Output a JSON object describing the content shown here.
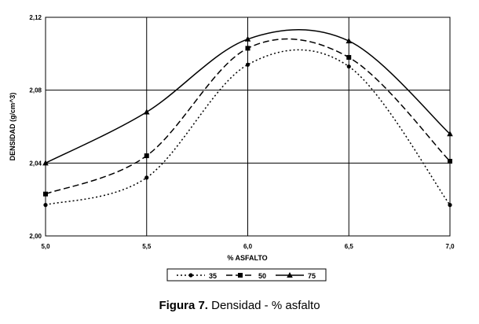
{
  "caption": {
    "prefix": "Figura 7.",
    "text": " Densidad - % asfalto"
  },
  "chart_data": {
    "type": "line",
    "title": "",
    "xlabel": "% ASFALTO",
    "ylabel": "DENSIDAD (g/cm^3)",
    "xlim": [
      5.0,
      7.0
    ],
    "ylim": [
      2.0,
      2.12
    ],
    "x_ticks": [
      "5,0",
      "5,5",
      "6,0",
      "6,5",
      "7,0"
    ],
    "y_ticks": [
      "2,00",
      "2,04",
      "2,08",
      "2,12"
    ],
    "grid": true,
    "legend_position": "bottom",
    "series": [
      {
        "name": "35",
        "marker": "circle",
        "style": "dotted",
        "x": [
          5.0,
          5.5,
          6.0,
          6.5,
          7.0
        ],
        "values": [
          2.017,
          2.032,
          2.094,
          2.093,
          2.017
        ]
      },
      {
        "name": "50",
        "marker": "square",
        "style": "dashed",
        "x": [
          5.0,
          5.5,
          6.0,
          6.5,
          7.0
        ],
        "values": [
          2.023,
          2.044,
          2.103,
          2.098,
          2.041
        ]
      },
      {
        "name": "75",
        "marker": "triangle",
        "style": "solid",
        "x": [
          5.0,
          5.5,
          6.0,
          6.5,
          7.0
        ],
        "values": [
          2.04,
          2.068,
          2.108,
          2.107,
          2.056
        ]
      }
    ]
  }
}
